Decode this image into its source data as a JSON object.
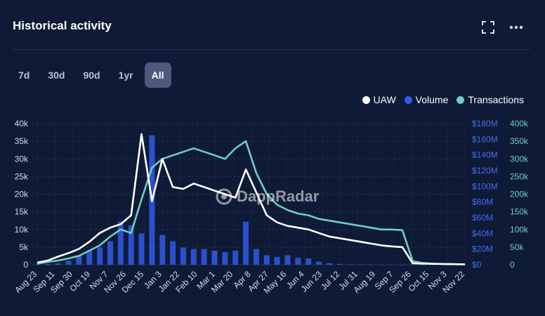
{
  "header": {
    "title": "Historical activity"
  },
  "tabs": [
    {
      "label": "7d",
      "active": false
    },
    {
      "label": "30d",
      "active": false
    },
    {
      "label": "90d",
      "active": false
    },
    {
      "label": "1yr",
      "active": false
    },
    {
      "label": "All",
      "active": true
    }
  ],
  "watermark": "DappRadar",
  "colors": {
    "background": "#0f1a36",
    "uaw": "#ffffff",
    "volume": "#2f5be8",
    "transactions": "#6ecfc0",
    "tab_active": "#4d5a7d"
  },
  "icons": {
    "expand": "expand-icon",
    "more": "more-icon"
  },
  "chart_data": {
    "type": "line",
    "legend": [
      "UAW",
      "Volume",
      "Transactions"
    ],
    "legend_position": "top-right",
    "x_labels": [
      "Aug 23",
      "Sep 11",
      "Sep 30",
      "Oct 19",
      "Nov 7",
      "Nov 26",
      "Dec 15",
      "Jan 3",
      "Jan 22",
      "Feb 10",
      "Mar 1",
      "Mar 20",
      "Apr 8",
      "Apr 27",
      "May 16",
      "Jun 4",
      "Jun 23",
      "Jul 12",
      "Jul 31",
      "Aug 19",
      "Sep 7",
      "Sep 26",
      "Oct 15",
      "Nov 3",
      "Nov 22"
    ],
    "y_left": {
      "ticks": [
        "0",
        "5k",
        "10k",
        "15k",
        "20k",
        "25k",
        "30k",
        "35k",
        "40k"
      ],
      "range": [
        0,
        40000
      ]
    },
    "y_vol": {
      "ticks": [
        "$0",
        "$20M",
        "$40M",
        "$60M",
        "$80M",
        "$100M",
        "$120M",
        "$140M",
        "$160M",
        "$180M"
      ],
      "range": [
        0,
        180000000
      ]
    },
    "y_right": {
      "ticks": [
        "0",
        "50k",
        "100k",
        "150k",
        "200k",
        "250k",
        "300k",
        "350k",
        "400k"
      ],
      "range": [
        0,
        400000
      ]
    },
    "grid": true,
    "series": [
      {
        "name": "UAW",
        "axis": "left",
        "values": [
          600,
          1200,
          2300,
          3300,
          4500,
          6500,
          9000,
          10500,
          11500,
          14000,
          37000,
          18000,
          30000,
          22000,
          21500,
          23000,
          22000,
          21000,
          20000,
          19000,
          27000,
          20500,
          14000,
          12000,
          11000,
          10500,
          10000,
          9000,
          8000,
          7500,
          7000,
          6500,
          6000,
          5500,
          5200,
          5000,
          400,
          300,
          250,
          200,
          150,
          100
        ]
      },
      {
        "name": "Volume",
        "axis": "volume",
        "values": [
          500000,
          1000000,
          2000000,
          5000000,
          12000000,
          18000000,
          22000000,
          30000000,
          55000000,
          50000000,
          40000000,
          165000000,
          38000000,
          30000000,
          22000000,
          20000000,
          20000000,
          18000000,
          16000000,
          18000000,
          55000000,
          20000000,
          12000000,
          10000000,
          12000000,
          9000000,
          8000000,
          4000000,
          2000000,
          1000000,
          500000,
          300000,
          200000,
          150000,
          100000,
          80000,
          50000,
          40000,
          30000,
          20000,
          10000,
          5000
        ]
      },
      {
        "name": "Transactions",
        "axis": "right",
        "values": [
          3000,
          8000,
          12000,
          18000,
          25000,
          40000,
          55000,
          80000,
          100000,
          90000,
          185000,
          275000,
          300000,
          310000,
          320000,
          330000,
          320000,
          310000,
          300000,
          330000,
          350000,
          260000,
          200000,
          170000,
          155000,
          145000,
          140000,
          130000,
          125000,
          120000,
          115000,
          110000,
          105000,
          100000,
          100000,
          98000,
          10000,
          5000,
          3000,
          2000,
          1500,
          1000
        ]
      }
    ]
  }
}
